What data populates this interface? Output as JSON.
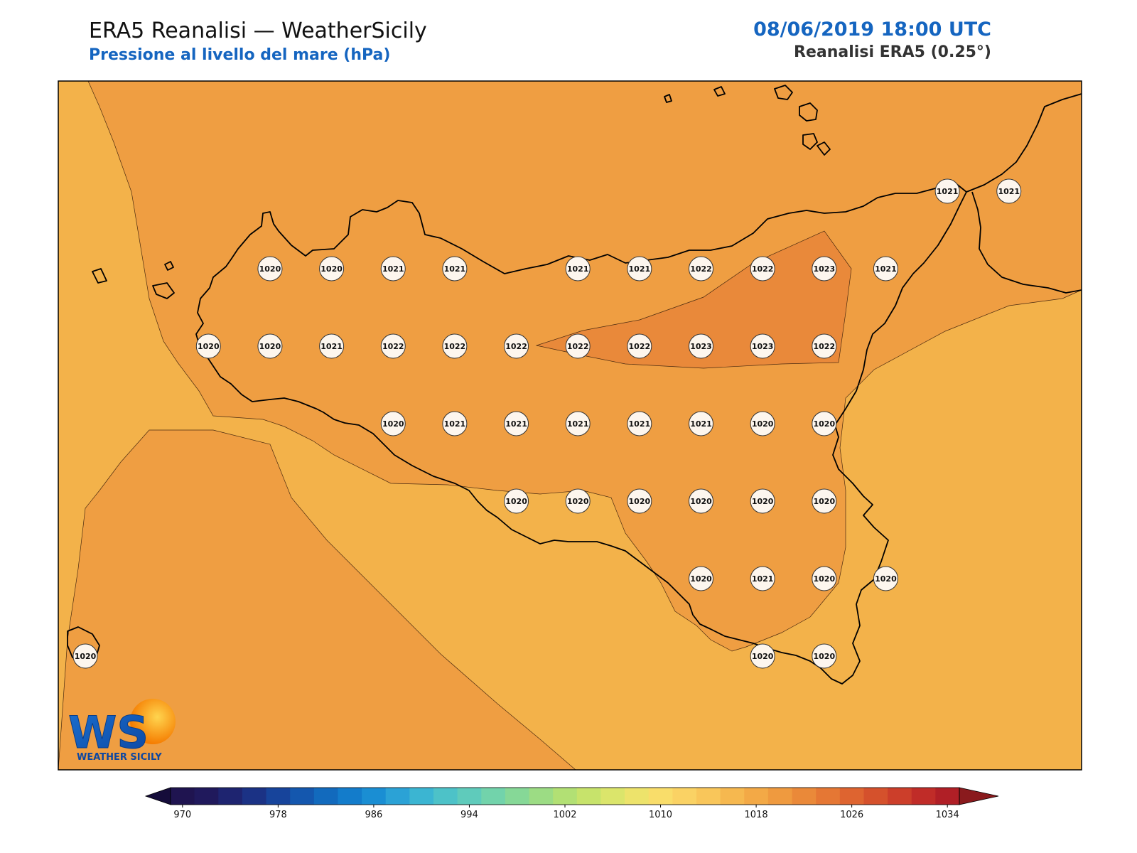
{
  "header": {
    "title": "ERA5 Reanalisi — WeatherSicily",
    "subtitle": "Pressione al livello del mare (hPa)",
    "datetime": "08/06/2019 18:00 UTC",
    "source": "Reanalisi ERA5 (0.25°)"
  },
  "logo": {
    "letters": "WS",
    "text": "WEATHER SICILY"
  },
  "colors": {
    "field_low": "#f3b24a",
    "field_mid": "#ef9e42",
    "field_high": "#e9893a",
    "coast": "#000000",
    "title_blue": "#1565c0"
  },
  "stations": [
    {
      "value": "1021",
      "lon": 15.5,
      "lat": 38.5
    },
    {
      "value": "1021",
      "lon": 15.75,
      "lat": 38.5
    },
    {
      "value": "1020",
      "lon": 12.75,
      "lat": 38.25
    },
    {
      "value": "1020",
      "lon": 13.0,
      "lat": 38.25
    },
    {
      "value": "1021",
      "lon": 13.25,
      "lat": 38.25
    },
    {
      "value": "1021",
      "lon": 13.5,
      "lat": 38.25
    },
    {
      "value": "1021",
      "lon": 14.0,
      "lat": 38.25
    },
    {
      "value": "1021",
      "lon": 14.25,
      "lat": 38.25
    },
    {
      "value": "1022",
      "lon": 14.5,
      "lat": 38.25
    },
    {
      "value": "1022",
      "lon": 14.75,
      "lat": 38.25
    },
    {
      "value": "1023",
      "lon": 15.0,
      "lat": 38.25
    },
    {
      "value": "1021",
      "lon": 15.25,
      "lat": 38.25
    },
    {
      "value": "1020",
      "lon": 12.5,
      "lat": 38.0
    },
    {
      "value": "1020",
      "lon": 12.75,
      "lat": 38.0
    },
    {
      "value": "1021",
      "lon": 13.0,
      "lat": 38.0
    },
    {
      "value": "1022",
      "lon": 13.25,
      "lat": 38.0
    },
    {
      "value": "1022",
      "lon": 13.5,
      "lat": 38.0
    },
    {
      "value": "1022",
      "lon": 13.75,
      "lat": 38.0
    },
    {
      "value": "1022",
      "lon": 14.0,
      "lat": 38.0
    },
    {
      "value": "1022",
      "lon": 14.25,
      "lat": 38.0
    },
    {
      "value": "1023",
      "lon": 14.5,
      "lat": 38.0
    },
    {
      "value": "1023",
      "lon": 14.75,
      "lat": 38.0
    },
    {
      "value": "1022",
      "lon": 15.0,
      "lat": 38.0
    },
    {
      "value": "1020",
      "lon": 13.25,
      "lat": 37.75
    },
    {
      "value": "1021",
      "lon": 13.5,
      "lat": 37.75
    },
    {
      "value": "1021",
      "lon": 13.75,
      "lat": 37.75
    },
    {
      "value": "1021",
      "lon": 14.0,
      "lat": 37.75
    },
    {
      "value": "1021",
      "lon": 14.25,
      "lat": 37.75
    },
    {
      "value": "1021",
      "lon": 14.5,
      "lat": 37.75
    },
    {
      "value": "1020",
      "lon": 14.75,
      "lat": 37.75
    },
    {
      "value": "1020",
      "lon": 15.0,
      "lat": 37.75
    },
    {
      "value": "1020",
      "lon": 13.75,
      "lat": 37.5
    },
    {
      "value": "1020",
      "lon": 14.0,
      "lat": 37.5
    },
    {
      "value": "1020",
      "lon": 14.25,
      "lat": 37.5
    },
    {
      "value": "1020",
      "lon": 14.5,
      "lat": 37.5
    },
    {
      "value": "1020",
      "lon": 14.75,
      "lat": 37.5
    },
    {
      "value": "1020",
      "lon": 15.0,
      "lat": 37.5
    },
    {
      "value": "1020",
      "lon": 14.5,
      "lat": 37.25
    },
    {
      "value": "1021",
      "lon": 14.75,
      "lat": 37.25
    },
    {
      "value": "1020",
      "lon": 15.0,
      "lat": 37.25
    },
    {
      "value": "1020",
      "lon": 15.25,
      "lat": 37.25
    },
    {
      "value": "1020",
      "lon": 12.0,
      "lat": 37.0
    },
    {
      "value": "1020",
      "lon": 14.75,
      "lat": 37.0
    },
    {
      "value": "1020",
      "lon": 15.0,
      "lat": 37.0
    }
  ],
  "colorbar": {
    "min": 970,
    "max": 1034,
    "step": 2,
    "tick_labels": [
      "970",
      "978",
      "986",
      "994",
      "1002",
      "1010",
      "1018",
      "1026",
      "1034"
    ],
    "colors": [
      "#1f1450",
      "#20195c",
      "#1e2470",
      "#1b3285",
      "#17449b",
      "#1457ae",
      "#126abd",
      "#137ccb",
      "#1a8ed3",
      "#2ba2d6",
      "#3bb5d2",
      "#4dc2c8",
      "#5fcbbb",
      "#72d3ab",
      "#86d897",
      "#9cdc84",
      "#b2e074",
      "#c7e36b",
      "#dbe56b",
      "#ede36b",
      "#f9dd6a",
      "#fad264",
      "#f9c65a",
      "#f6b84f",
      "#f3a946",
      "#ef9a3f",
      "#ea8939",
      "#e57734",
      "#de6430",
      "#d5512c",
      "#cc3e2a",
      "#c02c28",
      "#b01f26"
    ],
    "under_color": "#150c3a",
    "over_color": "#8a1a1d"
  }
}
